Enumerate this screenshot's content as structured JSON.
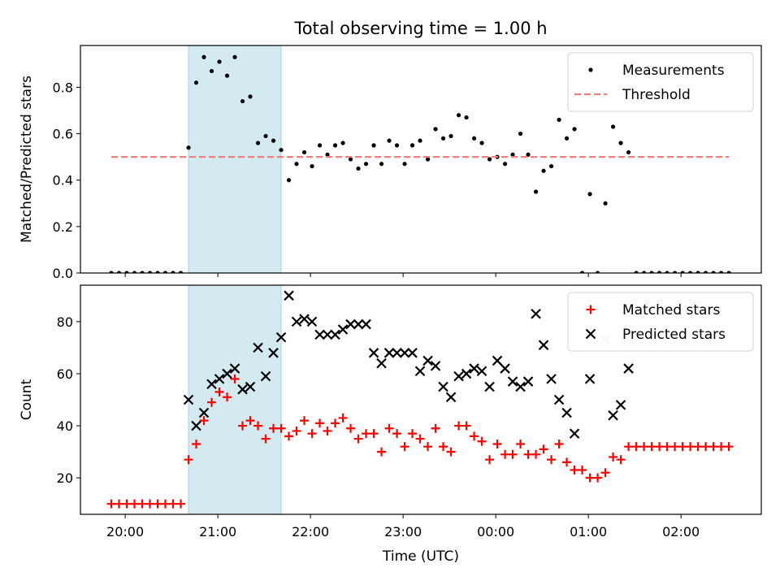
{
  "title": "Total observing time = 1.00 h",
  "chart_data": [
    {
      "type": "scatter",
      "ylabel": "Matched/Predicted stars",
      "xlabel": "",
      "xlim": [
        "19:31",
        "02:52"
      ],
      "ylim": [
        0,
        0.98
      ],
      "yticks": [
        "0.0",
        "0.2",
        "0.4",
        "0.6",
        "0.8"
      ],
      "yticks_values": [
        0,
        0.2,
        0.4,
        0.6,
        0.8
      ],
      "grid": false,
      "legend_position": "upper right",
      "shaded_interval": [
        "20:41",
        "21:41"
      ],
      "shaded_color": "#d3eaf1",
      "series": [
        {
          "name": "Measurements",
          "style": "dot",
          "color": "#000000",
          "points": [
            [
              "19:51",
              0
            ],
            [
              "19:56",
              0
            ],
            [
              "20:01",
              0
            ],
            [
              "20:06",
              0
            ],
            [
              "20:11",
              0
            ],
            [
              "20:16",
              0
            ],
            [
              "20:21",
              0
            ],
            [
              "20:26",
              0
            ],
            [
              "20:31",
              0
            ],
            [
              "20:36",
              0
            ],
            [
              "20:41",
              0.54
            ],
            [
              "20:46",
              0.82
            ],
            [
              "20:51",
              0.93
            ],
            [
              "20:56",
              0.87
            ],
            [
              "21:01",
              0.91
            ],
            [
              "21:06",
              0.85
            ],
            [
              "21:11",
              0.93
            ],
            [
              "21:16",
              0.74
            ],
            [
              "21:21",
              0.76
            ],
            [
              "21:26",
              0.56
            ],
            [
              "21:31",
              0.59
            ],
            [
              "21:36",
              0.57
            ],
            [
              "21:41",
              0.53
            ],
            [
              "21:46",
              0.4
            ],
            [
              "21:51",
              0.47
            ],
            [
              "21:56",
              0.52
            ],
            [
              "22:01",
              0.46
            ],
            [
              "22:06",
              0.55
            ],
            [
              "22:11",
              0.51
            ],
            [
              "22:16",
              0.55
            ],
            [
              "22:21",
              0.56
            ],
            [
              "22:26",
              0.49
            ],
            [
              "22:31",
              0.45
            ],
            [
              "22:36",
              0.47
            ],
            [
              "22:41",
              0.55
            ],
            [
              "22:46",
              0.47
            ],
            [
              "22:51",
              0.57
            ],
            [
              "22:56",
              0.55
            ],
            [
              "23:01",
              0.47
            ],
            [
              "23:06",
              0.55
            ],
            [
              "23:11",
              0.57
            ],
            [
              "23:16",
              0.49
            ],
            [
              "23:21",
              0.62
            ],
            [
              "23:26",
              0.58
            ],
            [
              "23:31",
              0.59
            ],
            [
              "23:36",
              0.68
            ],
            [
              "23:41",
              0.67
            ],
            [
              "23:46",
              0.58
            ],
            [
              "23:51",
              0.56
            ],
            [
              "23:56",
              0.49
            ],
            [
              "00:01",
              0.5
            ],
            [
              "00:06",
              0.47
            ],
            [
              "00:11",
              0.51
            ],
            [
              "00:16",
              0.6
            ],
            [
              "00:21",
              0.51
            ],
            [
              "00:26",
              0.35
            ],
            [
              "00:31",
              0.44
            ],
            [
              "00:36",
              0.46
            ],
            [
              "00:41",
              0.66
            ],
            [
              "00:46",
              0.58
            ],
            [
              "00:51",
              0.62
            ],
            [
              "00:56",
              0
            ],
            [
              "01:01",
              0.34
            ],
            [
              "01:06",
              0
            ],
            [
              "01:11",
              0.3
            ],
            [
              "01:16",
              0.63
            ],
            [
              "01:21",
              0.56
            ],
            [
              "01:26",
              0.52
            ],
            [
              "01:31",
              0
            ],
            [
              "01:36",
              0
            ],
            [
              "01:41",
              0
            ],
            [
              "01:46",
              0
            ],
            [
              "01:51",
              0
            ],
            [
              "01:56",
              0
            ],
            [
              "02:01",
              0
            ],
            [
              "02:06",
              0
            ],
            [
              "02:11",
              0
            ],
            [
              "02:16",
              0
            ],
            [
              "02:21",
              0
            ],
            [
              "02:26",
              0
            ],
            [
              "02:31",
              0
            ]
          ]
        },
        {
          "name": "Threshold",
          "style": "dashed-line",
          "color": "#f08080",
          "points": [
            [
              "19:51",
              0.5
            ],
            [
              "02:31",
              0.5
            ]
          ]
        }
      ]
    },
    {
      "type": "scatter",
      "ylabel": "Count",
      "xlabel": "Time (UTC)",
      "xlim": [
        "19:31",
        "02:52"
      ],
      "ylim": [
        6,
        94
      ],
      "xticks": [
        "20:00",
        "21:00",
        "22:00",
        "23:00",
        "00:00",
        "01:00",
        "02:00"
      ],
      "yticks": [
        "20",
        "40",
        "60",
        "80"
      ],
      "yticks_values": [
        20,
        40,
        60,
        80
      ],
      "grid": false,
      "legend_position": "upper right",
      "shaded_interval": [
        "20:41",
        "21:41"
      ],
      "shaded_color": "#d3eaf1",
      "series": [
        {
          "name": "Matched stars",
          "style": "plus",
          "color": "#ff0000",
          "points": [
            [
              "19:51",
              10
            ],
            [
              "19:56",
              10
            ],
            [
              "20:01",
              10
            ],
            [
              "20:06",
              10
            ],
            [
              "20:11",
              10
            ],
            [
              "20:16",
              10
            ],
            [
              "20:21",
              10
            ],
            [
              "20:26",
              10
            ],
            [
              "20:31",
              10
            ],
            [
              "20:36",
              10
            ],
            [
              "20:41",
              27
            ],
            [
              "20:46",
              33
            ],
            [
              "20:51",
              42
            ],
            [
              "20:56",
              49
            ],
            [
              "21:01",
              53
            ],
            [
              "21:06",
              51
            ],
            [
              "21:11",
              58
            ],
            [
              "21:16",
              40
            ],
            [
              "21:21",
              42
            ],
            [
              "21:26",
              40
            ],
            [
              "21:31",
              35
            ],
            [
              "21:36",
              39
            ],
            [
              "21:41",
              39
            ],
            [
              "21:46",
              36
            ],
            [
              "21:51",
              38
            ],
            [
              "21:56",
              42
            ],
            [
              "22:01",
              37
            ],
            [
              "22:06",
              41
            ],
            [
              "22:11",
              38
            ],
            [
              "22:16",
              41
            ],
            [
              "22:21",
              43
            ],
            [
              "22:26",
              39
            ],
            [
              "22:31",
              35
            ],
            [
              "22:36",
              37
            ],
            [
              "22:41",
              37
            ],
            [
              "22:46",
              30
            ],
            [
              "22:51",
              39
            ],
            [
              "22:56",
              37
            ],
            [
              "23:01",
              32
            ],
            [
              "23:06",
              37
            ],
            [
              "23:11",
              35
            ],
            [
              "23:16",
              32
            ],
            [
              "23:21",
              39
            ],
            [
              "23:26",
              32
            ],
            [
              "23:31",
              30
            ],
            [
              "23:36",
              40
            ],
            [
              "23:41",
              40
            ],
            [
              "23:46",
              36
            ],
            [
              "23:51",
              34
            ],
            [
              "23:56",
              27
            ],
            [
              "00:01",
              33
            ],
            [
              "00:06",
              29
            ],
            [
              "00:11",
              29
            ],
            [
              "00:16",
              33
            ],
            [
              "00:21",
              29
            ],
            [
              "00:26",
              29
            ],
            [
              "00:31",
              31
            ],
            [
              "00:36",
              27
            ],
            [
              "00:41",
              33
            ],
            [
              "00:46",
              26
            ],
            [
              "00:51",
              23
            ],
            [
              "00:56",
              23
            ],
            [
              "01:01",
              20
            ],
            [
              "01:06",
              20
            ],
            [
              "01:11",
              22
            ],
            [
              "01:16",
              28
            ],
            [
              "01:21",
              27
            ],
            [
              "01:26",
              32
            ],
            [
              "01:31",
              32
            ],
            [
              "01:36",
              32
            ],
            [
              "01:41",
              32
            ],
            [
              "01:46",
              32
            ],
            [
              "01:51",
              32
            ],
            [
              "01:56",
              32
            ],
            [
              "02:01",
              32
            ],
            [
              "02:06",
              32
            ],
            [
              "02:11",
              32
            ],
            [
              "02:16",
              32
            ],
            [
              "02:21",
              32
            ],
            [
              "02:26",
              32
            ],
            [
              "02:31",
              32
            ]
          ]
        },
        {
          "name": "Predicted stars",
          "style": "cross",
          "color": "#000000",
          "points": [
            [
              "20:41",
              50
            ],
            [
              "20:46",
              40
            ],
            [
              "20:51",
              45
            ],
            [
              "20:56",
              56
            ],
            [
              "21:01",
              58
            ],
            [
              "21:06",
              60
            ],
            [
              "21:11",
              62
            ],
            [
              "21:16",
              54
            ],
            [
              "21:21",
              55
            ],
            [
              "21:26",
              70
            ],
            [
              "21:31",
              59
            ],
            [
              "21:36",
              68
            ],
            [
              "21:41",
              74
            ],
            [
              "21:46",
              90
            ],
            [
              "21:51",
              80
            ],
            [
              "21:56",
              81
            ],
            [
              "22:01",
              80
            ],
            [
              "22:06",
              75
            ],
            [
              "22:11",
              75
            ],
            [
              "22:16",
              75
            ],
            [
              "22:21",
              77
            ],
            [
              "22:26",
              79
            ],
            [
              "22:31",
              79
            ],
            [
              "22:36",
              79
            ],
            [
              "22:41",
              68
            ],
            [
              "22:46",
              64
            ],
            [
              "22:51",
              68
            ],
            [
              "22:56",
              68
            ],
            [
              "23:01",
              68
            ],
            [
              "23:06",
              68
            ],
            [
              "23:11",
              61
            ],
            [
              "23:16",
              65
            ],
            [
              "23:21",
              63
            ],
            [
              "23:26",
              55
            ],
            [
              "23:31",
              51
            ],
            [
              "23:36",
              59
            ],
            [
              "23:41",
              60
            ],
            [
              "23:46",
              62
            ],
            [
              "23:51",
              61
            ],
            [
              "23:56",
              55
            ],
            [
              "00:01",
              65
            ],
            [
              "00:06",
              62
            ],
            [
              "00:11",
              57
            ],
            [
              "00:16",
              55
            ],
            [
              "00:21",
              57
            ],
            [
              "00:26",
              83
            ],
            [
              "00:31",
              71
            ],
            [
              "00:36",
              58
            ],
            [
              "00:41",
              50
            ],
            [
              "00:46",
              45
            ],
            [
              "00:51",
              37
            ],
            [
              "01:01",
              58
            ],
            [
              "01:16",
              44
            ],
            [
              "01:21",
              48
            ],
            [
              "01:26",
              62
            ]
          ]
        },
        {
          "name": "",
          "style": "cross",
          "color": "#c8c8c8",
          "points": [
            [
              "01:11",
              73
            ]
          ]
        }
      ]
    }
  ]
}
